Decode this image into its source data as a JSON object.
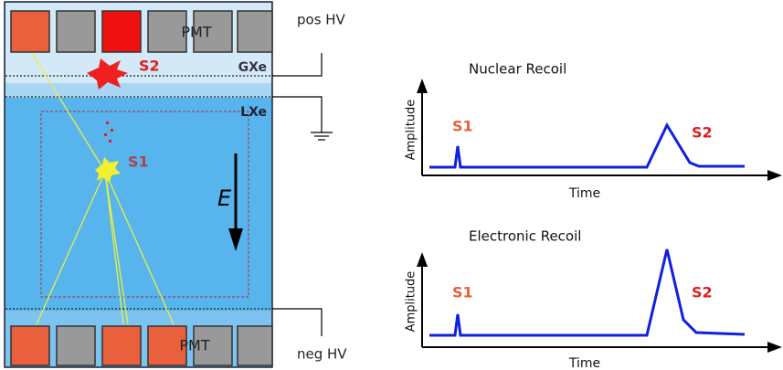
{
  "detector": {
    "pmt_top": "PMT",
    "pmt_bottom": "PMT",
    "s2": "S2",
    "s1": "S1",
    "gxe": "GXe",
    "lxe": "LXe",
    "field": "E",
    "pos_hv": "pos HV",
    "neg_hv": "neg HV"
  },
  "plots": [
    {
      "title": "Nuclear Recoil",
      "y_label": "Amplitude",
      "x_label": "Time",
      "s1": "S1",
      "s2": "S2"
    },
    {
      "title": "Electronic Recoil",
      "y_label": "Amplitude",
      "x_label": "Time",
      "s1": "S1",
      "s2": "S2"
    }
  ]
}
